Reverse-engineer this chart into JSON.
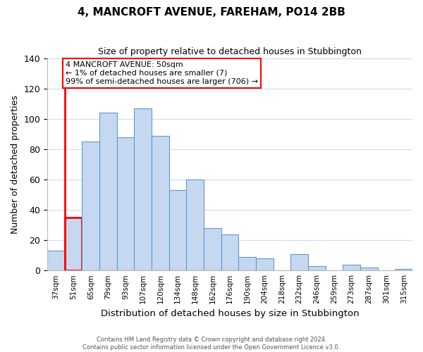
{
  "title": "4, MANCROFT AVENUE, FAREHAM, PO14 2BB",
  "subtitle": "Size of property relative to detached houses in Stubbington",
  "xlabel": "Distribution of detached houses by size in Stubbington",
  "ylabel": "Number of detached properties",
  "bar_labels": [
    "37sqm",
    "51sqm",
    "65sqm",
    "79sqm",
    "93sqm",
    "107sqm",
    "120sqm",
    "134sqm",
    "148sqm",
    "162sqm",
    "176sqm",
    "190sqm",
    "204sqm",
    "218sqm",
    "232sqm",
    "246sqm",
    "259sqm",
    "273sqm",
    "287sqm",
    "301sqm",
    "315sqm"
  ],
  "bar_values": [
    13,
    35,
    85,
    104,
    88,
    107,
    89,
    53,
    60,
    28,
    24,
    9,
    8,
    0,
    11,
    3,
    0,
    4,
    2,
    0,
    1
  ],
  "bar_color": "#c5d8f0",
  "bar_edge_color": "#5b9bd5",
  "highlight_bar_index": 1,
  "highlight_color": "#ff0000",
  "ylim": [
    0,
    140
  ],
  "yticks": [
    0,
    20,
    40,
    60,
    80,
    100,
    120,
    140
  ],
  "annotation_title": "4 MANCROFT AVENUE: 50sqm",
  "annotation_line1": "← 1% of detached houses are smaller (7)",
  "annotation_line2": "99% of semi-detached houses are larger (706) →",
  "footer_line1": "Contains HM Land Registry data © Crown copyright and database right 2024.",
  "footer_line2": "Contains public sector information licensed under the Open Government Licence v3.0.",
  "background_color": "#ffffff",
  "grid_color": "#d0dce8"
}
